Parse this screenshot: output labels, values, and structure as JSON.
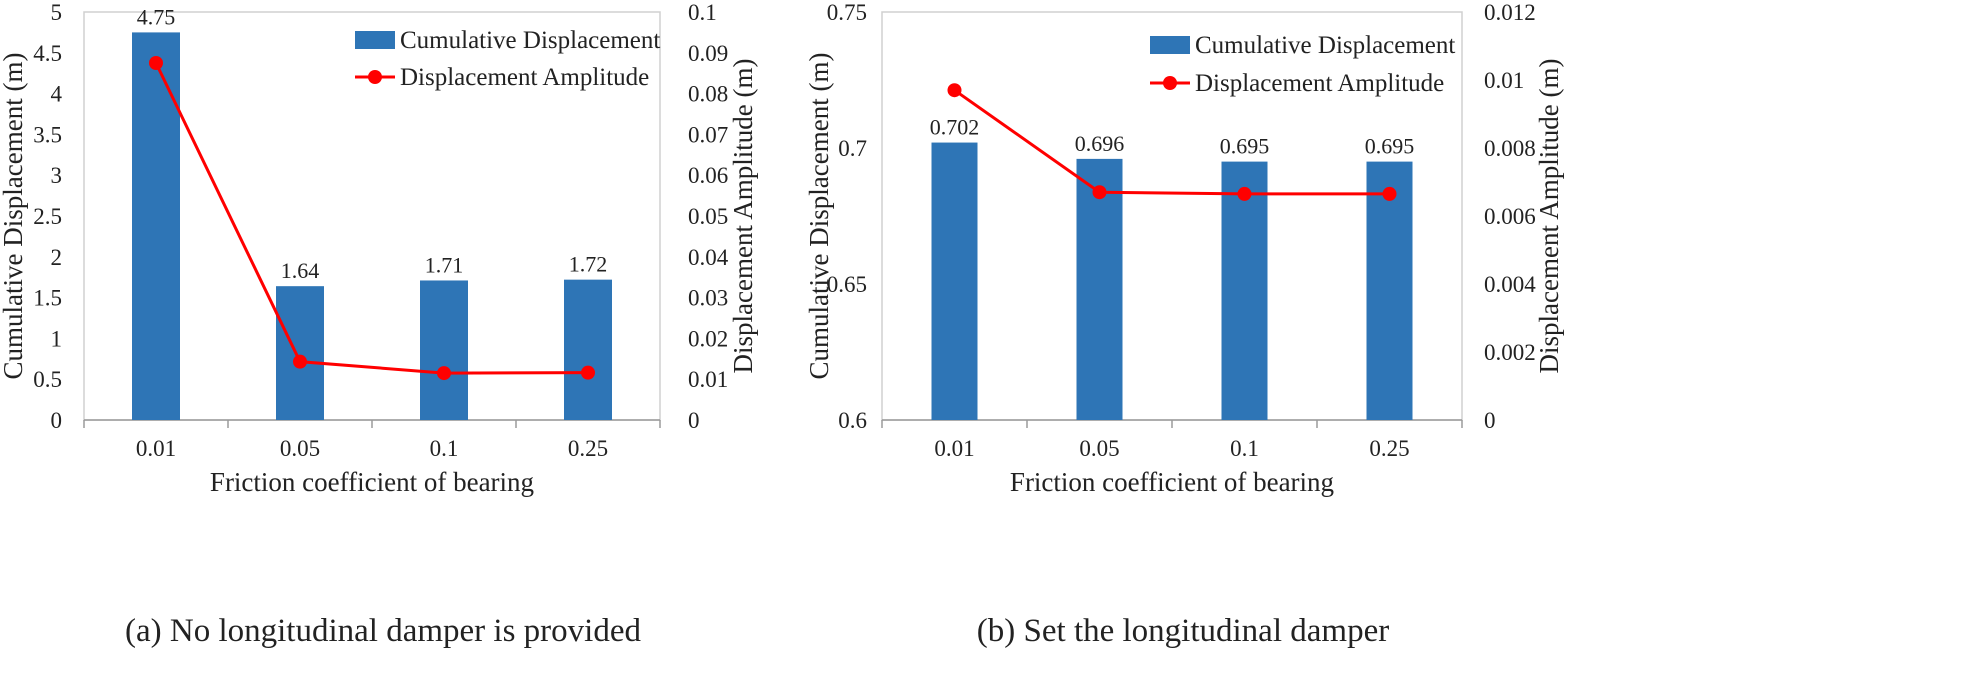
{
  "chart_data": [
    {
      "type": "bar+line",
      "caption": "(a) No longitudinal damper is provided",
      "categories": [
        "0.01",
        "0.05",
        "0.1",
        "0.25"
      ],
      "xlabel": "Friction coefficient of bearing",
      "ylabel": "Cumulative Displacement  (m)",
      "y2label": "Displacement Amplitude  (m)",
      "ylim": [
        0,
        5
      ],
      "y2lim": [
        0,
        0.1
      ],
      "yticks": [
        "0",
        "0.5",
        "1",
        "1.5",
        "2",
        "2.5",
        "3",
        "3.5",
        "4",
        "4.5",
        "5"
      ],
      "y2ticks": [
        "0",
        "0.01",
        "0.02",
        "0.03",
        "0.04",
        "0.05",
        "0.06",
        "0.07",
        "0.08",
        "0.09",
        "0.1"
      ],
      "series": [
        {
          "name": "Cumulative Displacement",
          "kind": "bar",
          "axis": "left",
          "values": [
            4.75,
            1.64,
            1.71,
            1.72
          ],
          "labels": [
            "4.75",
            "1.64",
            "1.71",
            "1.72"
          ],
          "color": "#2e75b6"
        },
        {
          "name": "Displacement Amplitude",
          "kind": "line",
          "axis": "right",
          "values": [
            0.0875,
            0.0143,
            0.0115,
            0.0116
          ],
          "color": "#ff0000"
        }
      ],
      "legend": "top-right"
    },
    {
      "type": "bar+line",
      "caption": "(b) Set the longitudinal damper",
      "categories": [
        "0.01",
        "0.05",
        "0.1",
        "0.25"
      ],
      "xlabel": "Friction coefficient of bearing",
      "ylabel": "Cumulative Displacement  (m)",
      "y2label": "Displacement Amplitude  (m)",
      "ylim": [
        0.6,
        0.75
      ],
      "y2lim": [
        0,
        0.012
      ],
      "yticks": [
        "0.6",
        "0.65",
        "0.7",
        "0.75"
      ],
      "y2ticks": [
        "0",
        "0.002",
        "0.004",
        "0.006",
        "0.008",
        "0.01",
        "0.012"
      ],
      "series": [
        {
          "name": "Cumulative Displacement",
          "kind": "bar",
          "axis": "left",
          "values": [
            0.702,
            0.696,
            0.695,
            0.695
          ],
          "labels": [
            "0.702",
            "0.696",
            "0.695",
            "0.695"
          ],
          "color": "#2e75b6"
        },
        {
          "name": "Displacement Amplitude",
          "kind": "line",
          "axis": "right",
          "values": [
            0.0097,
            0.0067,
            0.00665,
            0.00665
          ],
          "color": "#ff0000"
        }
      ],
      "legend": "top-right"
    }
  ]
}
